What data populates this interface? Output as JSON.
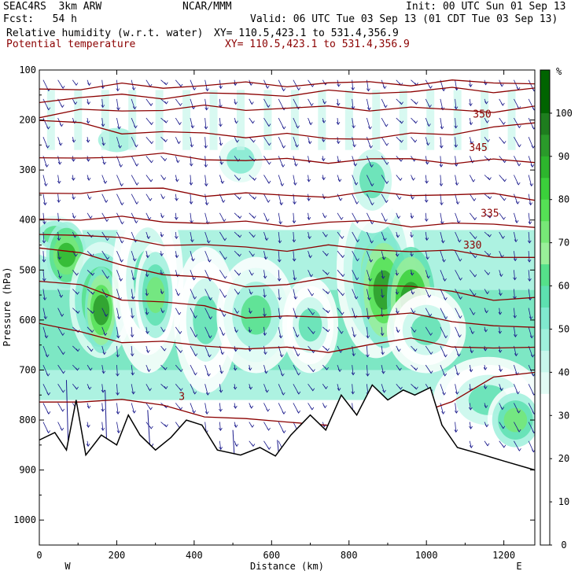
{
  "header": {
    "model": "SEAC4RS  3km ARW",
    "org": "NCAR/MMM",
    "init": "Init: 00 UTC Sun 01 Sep 13",
    "fcst": "Fcst:   54 h",
    "valid": "Valid: 06 UTC Tue 03 Sep 13 (01 CDT Tue 03 Sep 13)",
    "field1_name": "Relative humidity (w.r.t. water)",
    "field1_xy": "XY= 110.5,423.1 to 531.4,356.9",
    "field2_name": "Potential temperature",
    "field2_xy": "XY= 110.5,423.1 to 531.4,356.9"
  },
  "colors": {
    "theta_contour": "#8b0000",
    "wind_vectors": "#1a1a8c",
    "terrain_outline": "#000000"
  },
  "chart_data": {
    "type": "heatmap",
    "xlabel": "Distance (km)",
    "ylabel": "Pressure (hPa)",
    "x_ticks": [
      0,
      200,
      400,
      600,
      800,
      1000,
      1200
    ],
    "y_ticks": [
      100,
      200,
      300,
      400,
      500,
      600,
      700,
      800,
      900,
      1000
    ],
    "xlim": [
      0,
      1280
    ],
    "ylim": [
      1050,
      100
    ],
    "x_end_labels": {
      "left": "W",
      "right": "E"
    },
    "colorbar": {
      "unit": "%",
      "tick_labels": [
        "100",
        "90",
        "80",
        "70",
        "60",
        "50",
        "40",
        "30",
        "20",
        "10",
        "0"
      ],
      "levels": [
        {
          "from": 100,
          "to": 105,
          "color": "#006400"
        },
        {
          "from": 95,
          "to": 100,
          "color": "#1e7d1e"
        },
        {
          "from": 90,
          "to": 95,
          "color": "#2a9a2a"
        },
        {
          "from": 85,
          "to": 90,
          "color": "#2db52d"
        },
        {
          "from": 80,
          "to": 85,
          "color": "#3bd03b"
        },
        {
          "from": 75,
          "to": 80,
          "color": "#55e055"
        },
        {
          "from": 70,
          "to": 75,
          "color": "#77e877"
        },
        {
          "from": 65,
          "to": 70,
          "color": "#99ef99"
        },
        {
          "from": 60,
          "to": 65,
          "color": "#55e08a"
        },
        {
          "from": 55,
          "to": 60,
          "color": "#5de0b0"
        },
        {
          "from": 50,
          "to": 55,
          "color": "#80e9cf"
        },
        {
          "from": 45,
          "to": 50,
          "color": "#9ff0dc"
        },
        {
          "from": 40,
          "to": 45,
          "color": "#c7f7eb"
        },
        {
          "from": 35,
          "to": 40,
          "color": "#e1fbf4"
        }
      ]
    },
    "theta_contour_labels": [
      {
        "label": "350",
        "x": 1120,
        "p": 195
      },
      {
        "label": "345",
        "x": 1110,
        "p": 262
      },
      {
        "label": "335",
        "x": 1140,
        "p": 393
      },
      {
        "label": "330",
        "x": 1095,
        "p": 457
      },
      {
        "label": "3",
        "x": 360,
        "p": 760
      }
    ],
    "theta_contours": [
      {
        "p": [
          138,
          135,
          132,
          133,
          130,
          129,
          128,
          128,
          126,
          126,
          125,
          125,
          124
        ]
      },
      {
        "p": [
          160,
          156,
          152,
          152,
          150,
          148,
          148,
          146,
          144,
          142,
          140,
          140,
          138
        ]
      },
      {
        "p": [
          190,
          184,
          180,
          178,
          176,
          176,
          177,
          176,
          176,
          178,
          180,
          180,
          178
        ]
      },
      {
        "p": [
          200,
          210,
          222,
          226,
          228,
          230,
          232,
          236,
          235,
          232,
          225,
          214,
          210
        ]
      },
      {
        "p": [
          280,
          276,
          270,
          272,
          276,
          280,
          282,
          281,
          280,
          280,
          282,
          283,
          284
        ]
      },
      {
        "p": [
          352,
          342,
          338,
          340,
          347,
          350,
          351,
          350,
          348,
          348,
          348,
          352,
          355
        ]
      },
      {
        "p": [
          400,
          395,
          398,
          402,
          404,
          408,
          408,
          405,
          405,
          408,
          410,
          409,
          410
        ]
      },
      {
        "p": [
          425,
          430,
          440,
          445,
          452,
          456,
          457,
          455,
          458,
          460,
          466,
          470,
          475
        ]
      },
      {
        "p": [
          450,
          470,
          490,
          505,
          520,
          530,
          528,
          520,
          525,
          535,
          545,
          555,
          560
        ]
      },
      {
        "p": [
          520,
          535,
          555,
          565,
          575,
          590,
          596,
          595,
          588,
          592,
          600,
          610,
          620
        ]
      },
      {
        "p": [
          610,
          625,
          640,
          648,
          650,
          655,
          660,
          660,
          650,
          640,
          648,
          660,
          655
        ]
      },
      {
        "p": [
          770,
          760,
          758,
          775,
          788,
          800,
          806,
          805,
          798,
          790,
          760,
          720,
          700
        ]
      }
    ],
    "terrain_pressure": [
      {
        "x": 0,
        "p": 840
      },
      {
        "x": 40,
        "p": 825
      },
      {
        "x": 70,
        "p": 860
      },
      {
        "x": 95,
        "p": 760
      },
      {
        "x": 120,
        "p": 870
      },
      {
        "x": 160,
        "p": 830
      },
      {
        "x": 200,
        "p": 850
      },
      {
        "x": 230,
        "p": 790
      },
      {
        "x": 260,
        "p": 830
      },
      {
        "x": 300,
        "p": 860
      },
      {
        "x": 340,
        "p": 835
      },
      {
        "x": 380,
        "p": 800
      },
      {
        "x": 420,
        "p": 810
      },
      {
        "x": 460,
        "p": 860
      },
      {
        "x": 520,
        "p": 870
      },
      {
        "x": 570,
        "p": 855
      },
      {
        "x": 610,
        "p": 872
      },
      {
        "x": 650,
        "p": 830
      },
      {
        "x": 700,
        "p": 790
      },
      {
        "x": 740,
        "p": 820
      },
      {
        "x": 780,
        "p": 750
      },
      {
        "x": 820,
        "p": 790
      },
      {
        "x": 860,
        "p": 730
      },
      {
        "x": 900,
        "p": 760
      },
      {
        "x": 940,
        "p": 740
      },
      {
        "x": 970,
        "p": 750
      },
      {
        "x": 1010,
        "p": 735
      },
      {
        "x": 1040,
        "p": 810
      },
      {
        "x": 1080,
        "p": 855
      },
      {
        "x": 1140,
        "p": 868
      },
      {
        "x": 1200,
        "p": 882
      },
      {
        "x": 1280,
        "p": 900
      }
    ],
    "rh_blobs": [
      {
        "x": 40,
        "p": 430,
        "rx": 60,
        "rp": 40,
        "rh": 60
      },
      {
        "x": 70,
        "p": 470,
        "rx": 40,
        "rp": 60,
        "rh": 85
      },
      {
        "x": 160,
        "p": 560,
        "rx": 70,
        "rp": 110,
        "rh": 75
      },
      {
        "x": 160,
        "p": 580,
        "rx": 30,
        "rp": 80,
        "rh": 90
      },
      {
        "x": 280,
        "p": 520,
        "rx": 80,
        "rp": 180,
        "rh": 55
      },
      {
        "x": 300,
        "p": 550,
        "rx": 40,
        "rp": 100,
        "rh": 70
      },
      {
        "x": 430,
        "p": 600,
        "rx": 70,
        "rp": 140,
        "rh": 55
      },
      {
        "x": 560,
        "p": 590,
        "rx": 90,
        "rp": 110,
        "rh": 60
      },
      {
        "x": 700,
        "p": 610,
        "rx": 60,
        "rp": 90,
        "rh": 55
      },
      {
        "x": 870,
        "p": 500,
        "rx": 90,
        "rp": 170,
        "rh": 65
      },
      {
        "x": 890,
        "p": 540,
        "rx": 50,
        "rp": 110,
        "rh": 90
      },
      {
        "x": 960,
        "p": 560,
        "rx": 50,
        "rp": 100,
        "rh": 92
      },
      {
        "x": 1000,
        "p": 620,
        "rx": 90,
        "rp": 80,
        "rh": 55
      },
      {
        "x": 1160,
        "p": 760,
        "rx": 130,
        "rp": 80,
        "rh": 55
      },
      {
        "x": 1230,
        "p": 800,
        "rx": 60,
        "rp": 60,
        "rh": 70
      },
      {
        "x": 200,
        "p": 240,
        "rx": 120,
        "rp": 60,
        "rh": 45
      },
      {
        "x": 520,
        "p": 280,
        "rx": 80,
        "rp": 70,
        "rh": 50
      },
      {
        "x": 860,
        "p": 320,
        "rx": 70,
        "rp": 100,
        "rh": 55
      }
    ]
  }
}
